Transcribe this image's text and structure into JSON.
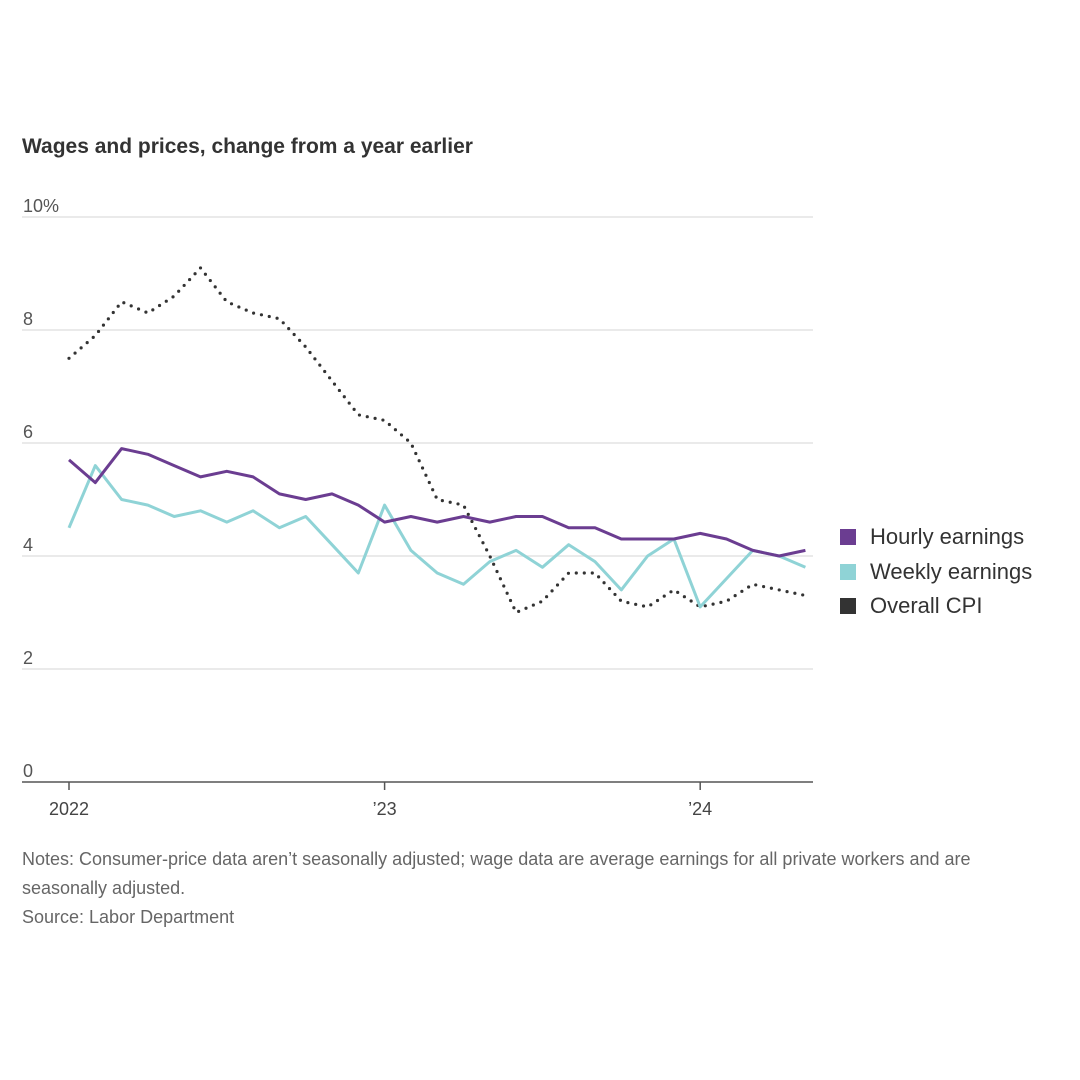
{
  "chart_data": {
    "type": "line",
    "title": "Wages and prices, change from a year earlier",
    "x": [
      "2022-01",
      "2022-02",
      "2022-03",
      "2022-04",
      "2022-05",
      "2022-06",
      "2022-07",
      "2022-08",
      "2022-09",
      "2022-10",
      "2022-11",
      "2022-12",
      "2023-01",
      "2023-02",
      "2023-03",
      "2023-04",
      "2023-05",
      "2023-06",
      "2023-07",
      "2023-08",
      "2023-09",
      "2023-10",
      "2023-11",
      "2023-12",
      "2024-01",
      "2024-02",
      "2024-03",
      "2024-04",
      "2024-05"
    ],
    "x_ticks": [
      {
        "x": "2022-01",
        "label": "2022"
      },
      {
        "x": "2023-01",
        "label": "’23"
      },
      {
        "x": "2024-01",
        "label": "’24"
      }
    ],
    "y_ticks": [
      "0",
      "2",
      "4",
      "6",
      "8",
      "10%"
    ],
    "ylim": [
      0,
      10
    ],
    "grid": true,
    "legend_placement": "right",
    "series": [
      {
        "name": "Hourly earnings",
        "color": "#6b3d91",
        "style": "solid",
        "values": [
          5.7,
          5.3,
          5.9,
          5.8,
          5.6,
          5.4,
          5.5,
          5.4,
          5.1,
          5.0,
          5.1,
          4.9,
          4.6,
          4.7,
          4.6,
          4.7,
          4.6,
          4.7,
          4.7,
          4.5,
          4.5,
          4.3,
          4.3,
          4.3,
          4.4,
          4.3,
          4.1,
          4.0,
          4.1
        ]
      },
      {
        "name": "Weekly earnings",
        "color": "#8fd3d6",
        "style": "solid",
        "values": [
          4.5,
          5.6,
          5.0,
          4.9,
          4.7,
          4.8,
          4.6,
          4.8,
          4.5,
          4.7,
          4.2,
          3.7,
          4.9,
          4.1,
          3.7,
          3.5,
          3.9,
          4.1,
          3.8,
          4.2,
          3.9,
          3.4,
          4.0,
          4.3,
          3.1,
          3.6,
          4.1,
          4.0,
          3.8
        ]
      },
      {
        "name": "Overall CPI",
        "color": "#333333",
        "style": "dotted",
        "values": [
          7.5,
          7.9,
          8.5,
          8.3,
          8.6,
          9.1,
          8.5,
          8.3,
          8.2,
          7.7,
          7.1,
          6.5,
          6.4,
          6.0,
          5.0,
          4.9,
          4.0,
          3.0,
          3.2,
          3.7,
          3.7,
          3.2,
          3.1,
          3.4,
          3.1,
          3.2,
          3.5,
          3.4,
          3.3
        ]
      }
    ]
  },
  "notes": "Notes: Consumer-price data aren’t seasonally adjusted; wage data are average earnings for all private workers and are seasonally adjusted.",
  "source": "Source: Labor Department"
}
